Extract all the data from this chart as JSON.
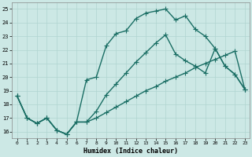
{
  "xlabel": "Humidex (Indice chaleur)",
  "background_color": "#cce8e5",
  "grid_color": "#b0d4d0",
  "line_color": "#1a6e64",
  "xlim": [
    0,
    23
  ],
  "ylim": [
    15.5,
    25.5
  ],
  "yticks": [
    16,
    17,
    18,
    19,
    20,
    21,
    22,
    23,
    24,
    25
  ],
  "xticks": [
    0,
    1,
    2,
    3,
    4,
    5,
    6,
    7,
    8,
    9,
    10,
    11,
    12,
    13,
    14,
    15,
    16,
    17,
    18,
    19,
    20,
    21,
    22,
    23
  ],
  "line1_x": [
    0,
    1,
    2,
    3,
    4,
    5,
    6,
    7,
    8,
    9,
    10,
    11,
    12,
    13,
    14,
    15,
    16,
    17,
    18,
    19,
    20,
    21,
    22,
    23
  ],
  "line1_y": [
    18.6,
    17.0,
    16.6,
    17.0,
    16.1,
    15.8,
    16.7,
    19.8,
    20.0,
    22.3,
    23.2,
    23.4,
    24.3,
    24.7,
    24.85,
    25.0,
    24.2,
    24.5,
    23.5,
    23.0,
    22.1,
    20.8,
    20.2,
    19.1
  ],
  "line2_x": [
    0,
    1,
    2,
    3,
    4,
    5,
    6,
    7,
    8,
    9,
    10,
    11,
    12,
    13,
    14,
    15,
    16,
    17,
    18,
    19,
    20,
    21,
    22,
    23
  ],
  "line2_y": [
    18.6,
    17.0,
    16.6,
    17.0,
    16.1,
    15.8,
    16.7,
    16.7,
    17.5,
    18.7,
    19.5,
    20.3,
    21.1,
    21.8,
    22.5,
    23.1,
    21.7,
    21.2,
    20.8,
    20.3,
    22.1,
    20.8,
    20.2,
    19.1
  ],
  "line3_x": [
    0,
    1,
    2,
    3,
    4,
    5,
    6,
    7,
    8,
    9,
    10,
    11,
    12,
    13,
    14,
    15,
    16,
    17,
    18,
    19,
    20,
    21,
    22,
    23
  ],
  "line3_y": [
    18.6,
    17.0,
    16.6,
    17.0,
    16.1,
    15.8,
    16.7,
    16.7,
    17.0,
    17.4,
    17.8,
    18.2,
    18.6,
    19.0,
    19.3,
    19.7,
    20.0,
    20.3,
    20.7,
    21.0,
    21.3,
    21.6,
    21.9,
    19.1
  ]
}
